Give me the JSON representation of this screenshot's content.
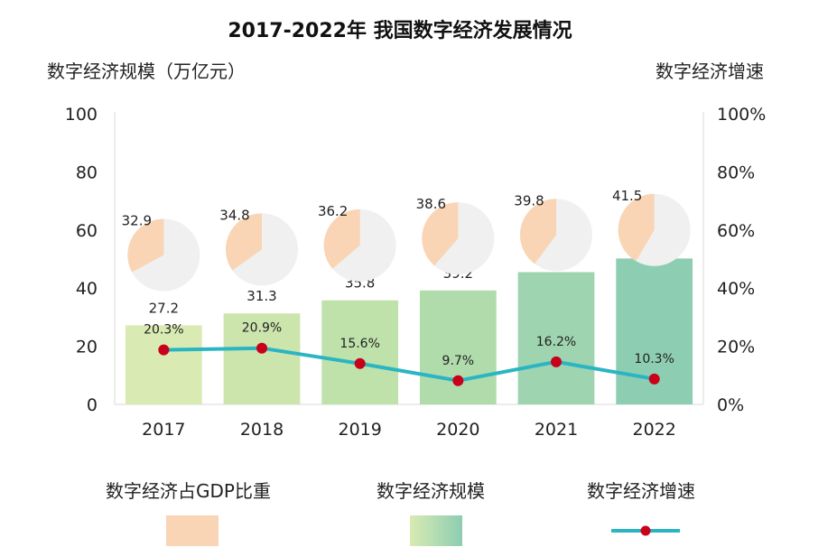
{
  "chart_data": {
    "type": "bar",
    "title": "2017-2022年 我国数字经济发展情况",
    "ylabel": "数字经济规模（万亿元）",
    "y2label": "数字经济增速",
    "categories": [
      "2017",
      "2018",
      "2019",
      "2020",
      "2021",
      "2022"
    ],
    "ylim": [
      0,
      100
    ],
    "yticks": [
      "0",
      "20",
      "40",
      "60",
      "80",
      "100"
    ],
    "y2lim": [
      0,
      100
    ],
    "y2ticks": [
      "0%",
      "20%",
      "40%",
      "60%",
      "80%",
      "100%"
    ],
    "series": [
      {
        "name": "数字经济规模",
        "type": "bar",
        "values": [
          27.2,
          31.3,
          35.8,
          39.2,
          45.5,
          50.2
        ],
        "labels": [
          "27.2",
          "31.3",
          "35.8",
          "39.2",
          "45.5",
          "50.2"
        ],
        "colors": [
          "#d9ebb2",
          "#cce5ad",
          "#bfe2ab",
          "#b0dcac",
          "#9ed4b0",
          "#8dcdb2"
        ]
      },
      {
        "name": "数字经济增速",
        "type": "line",
        "axis": "right",
        "values": [
          20.3,
          20.9,
          15.6,
          9.7,
          16.2,
          10.3
        ],
        "labels": [
          "20.3%",
          "20.9%",
          "15.6%",
          "9.7%",
          "16.2%",
          "10.3%"
        ],
        "line_color": "#2bb5c3",
        "marker_color": "#c9001a"
      },
      {
        "name": "数字经济占GDP比重",
        "type": "pie",
        "values": [
          32.9,
          34.8,
          36.2,
          38.6,
          39.8,
          41.5
        ],
        "labels": [
          "32.9",
          "34.8",
          "36.2",
          "38.6",
          "39.8",
          "41.5"
        ],
        "color": "#f9d5b5",
        "rest_color": "#eff0ef"
      }
    ],
    "grid": false
  },
  "legend": {
    "items": [
      {
        "label": "数字经济占GDP比重"
      },
      {
        "label": "数字经济规模"
      },
      {
        "label": "数字经济增速"
      }
    ]
  }
}
